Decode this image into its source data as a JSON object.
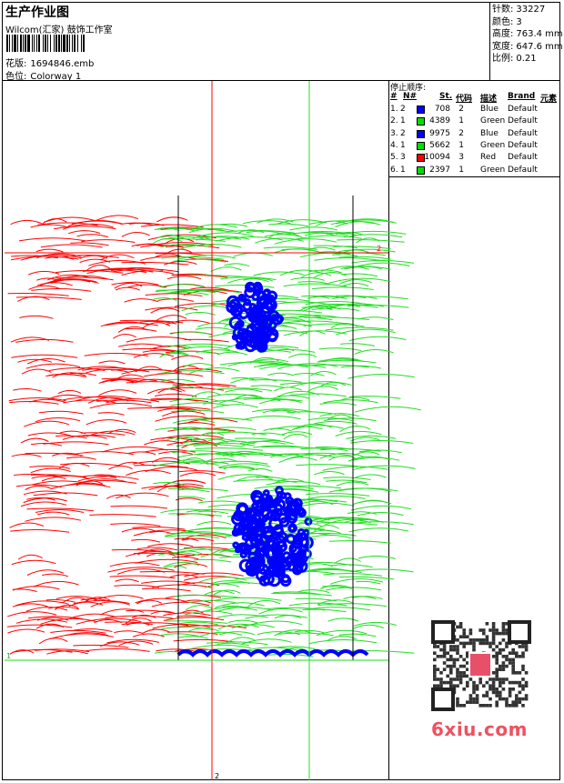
{
  "header": {
    "title": "生产作业图",
    "company": "Wilcom(汇家) 鼓饰工作室",
    "design_label": "花版:",
    "design_value": "1694846.emb",
    "colorway_label": "色位:",
    "colorway_value": "Colorway 1"
  },
  "stats": [
    {
      "label": "针数:",
      "value": "33227"
    },
    {
      "label": "颜色:",
      "value": "3"
    },
    {
      "label": "高度:",
      "value": "763.4 mm"
    },
    {
      "label": "宽度:",
      "value": "647.6 mm"
    },
    {
      "label": "比例:",
      "value": "0.21"
    }
  ],
  "stop_sequence": {
    "caption": "停止顺序:",
    "headers": [
      "#",
      "N#",
      "St.",
      "代码",
      "描述",
      "Brand",
      "元素"
    ],
    "rows": [
      {
        "idx": "1.",
        "n": "2",
        "color": "#0000ff",
        "st": "708",
        "code": "2",
        "desc": "Blue",
        "brand": "Default"
      },
      {
        "idx": "2.",
        "n": "1",
        "color": "#00dd00",
        "st": "4389",
        "code": "1",
        "desc": "Green",
        "brand": "Default"
      },
      {
        "idx": "3.",
        "n": "2",
        "color": "#0000ff",
        "st": "9975",
        "code": "2",
        "desc": "Blue",
        "brand": "Default"
      },
      {
        "idx": "4.",
        "n": "1",
        "color": "#00dd00",
        "st": "5662",
        "code": "1",
        "desc": "Green",
        "brand": "Default"
      },
      {
        "idx": "5.",
        "n": "3",
        "color": "#ff0000",
        "st": "10094",
        "code": "3",
        "desc": "Red",
        "brand": "Default"
      },
      {
        "idx": "6.",
        "n": "1",
        "color": "#00dd00",
        "st": "2397",
        "code": "1",
        "desc": "Green",
        "brand": "Default"
      }
    ]
  },
  "colors": {
    "red": "#ff0000",
    "green": "#22dd22",
    "blue": "#0000ff"
  },
  "guides": {
    "red_label": "2",
    "bottom_label": "2",
    "green_label": "1"
  },
  "watermark": {
    "text": "6xiu.com",
    "icon": "qr-code-icon"
  }
}
